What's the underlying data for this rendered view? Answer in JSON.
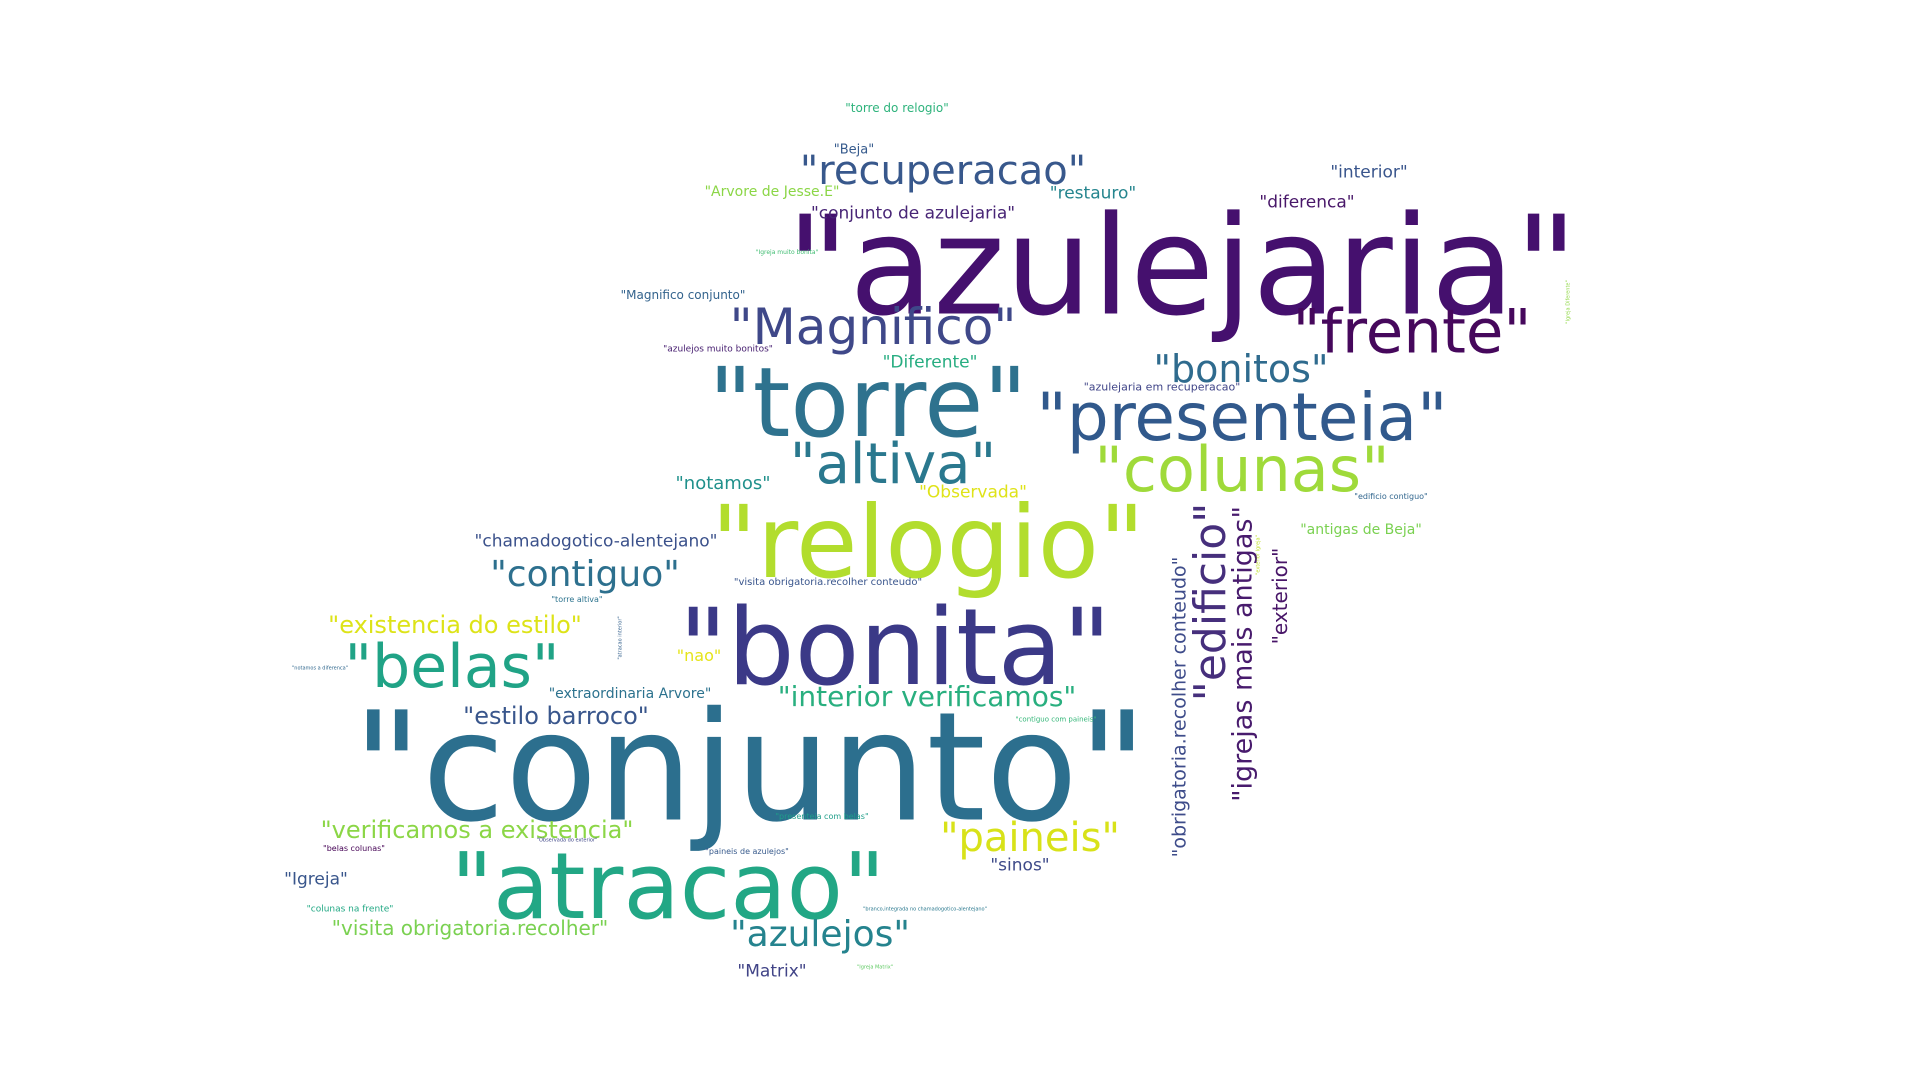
{
  "title": "word cloud",
  "words": [
    {
      "text": "\"azulejaria\"",
      "color": "#45106e"
    },
    {
      "text": "\"conjunto\"",
      "color": "#2c6f8e"
    },
    {
      "text": "\"bonita\"",
      "color": "#3b3987"
    },
    {
      "text": "\"relogio\"",
      "color": "#b2dd2d"
    },
    {
      "text": "\"torre\"",
      "color": "#2e728e"
    },
    {
      "text": "\"atracao\"",
      "color": "#22a785"
    },
    {
      "text": "\"presenteia\"",
      "color": "#31598c"
    },
    {
      "text": "\"frente\"",
      "color": "#46085c"
    },
    {
      "text": "\"colunas\"",
      "color": "#9fda3a"
    },
    {
      "text": "\"Magnifico\"",
      "color": "#3f4889"
    },
    {
      "text": "\"altiva\"",
      "color": "#2a788e"
    },
    {
      "text": "\"belas\"",
      "color": "#20a386"
    },
    {
      "text": "\"recuperacao\"",
      "color": "#38588c"
    },
    {
      "text": "\"edificio\"",
      "color": "#462f7c"
    },
    {
      "text": "\"bonitos\"",
      "color": "#2f6b8e"
    },
    {
      "text": "\"paineis\"",
      "color": "#d8e219"
    },
    {
      "text": "\"contiguo\"",
      "color": "#2d708e"
    },
    {
      "text": "\"azulejos\"",
      "color": "#25838e"
    },
    {
      "text": "\"interior verificamos\"",
      "color": "#29af7f"
    },
    {
      "text": "\"igrejas mais antigas\"",
      "color": "#481b6d"
    },
    {
      "text": "\"estilo barroco\"",
      "color": "#39568c"
    },
    {
      "text": "\"verificamos a existencia\"",
      "color": "#8bd646"
    },
    {
      "text": "\"existencia do estilo\"",
      "color": "#dde318"
    },
    {
      "text": "\"obrigatoria.recolher conteudo\"",
      "color": "#3e4c8a"
    },
    {
      "text": "\"visita obrigatoria.recolher\"",
      "color": "#7ad151"
    },
    {
      "text": "\"exterior\"",
      "color": "#481568"
    },
    {
      "text": "\"chamadogotico-alentejano\"",
      "color": "#3b518b"
    },
    {
      "text": "\"notamos\"",
      "color": "#21918c"
    },
    {
      "text": "\"Observada\"",
      "color": "#dfe318"
    },
    {
      "text": "\"Diferente\"",
      "color": "#27ad81"
    },
    {
      "text": "\"conjunto de azulejaria\"",
      "color": "#482576"
    },
    {
      "text": "\"interior\"",
      "color": "#39558c"
    },
    {
      "text": "\"diferenca\"",
      "color": "#481769"
    },
    {
      "text": "\"restauro\"",
      "color": "#25858e"
    },
    {
      "text": "\"Arvore de Jesse.E\"",
      "color": "#8bd646"
    },
    {
      "text": "\"Beja\"",
      "color": "#375b8d"
    },
    {
      "text": "\"torre do relogio\"",
      "color": "#2eb37c"
    },
    {
      "text": "\"Magnifico conjunto\"",
      "color": "#33638d"
    },
    {
      "text": "\"antigas de Beja\"",
      "color": "#7ad151"
    },
    {
      "text": "\"sinos\"",
      "color": "#3e4a89"
    },
    {
      "text": "\"Igreja\"",
      "color": "#39568c"
    },
    {
      "text": "\"Matrix\"",
      "color": "#414487"
    },
    {
      "text": "\"nao\"",
      "color": "#e5e419"
    },
    {
      "text": "\"extraordinaria Arvore\"",
      "color": "#2c728e"
    },
    {
      "text": "\"azulejaria em recuperacao\"",
      "color": "#404588"
    },
    {
      "text": "\"azulejos muito bonitos\"",
      "color": "#482071"
    },
    {
      "text": "\"visita obrigatoria.recolher conteudo\"",
      "color": "#39558c"
    },
    {
      "text": "\"edificio contiguo\"",
      "color": "#31668e"
    },
    {
      "text": "\"torre altiva\"",
      "color": "#2c738e"
    },
    {
      "text": "\"colunas na frente\"",
      "color": "#22a884"
    },
    {
      "text": "\"belas colunas\"",
      "color": "#440154"
    },
    {
      "text": "\"paineis de azulejos\"",
      "color": "#375a8c"
    },
    {
      "text": "\"presenteia com belas\"",
      "color": "#1f9e89"
    },
    {
      "text": "\"contiguo com paineis\"",
      "color": "#35b779"
    },
    {
      "text": "\"Igreja muito bonita\"",
      "color": "#40bd72"
    },
    {
      "text": "\"notamos a diferenca\"",
      "color": "#31688e"
    },
    {
      "text": "\"atracao interior\"",
      "color": "#34618d"
    },
    {
      "text": "\"Observada do exterior\"",
      "color": "#3f4788"
    },
    {
      "text": "\"branco,integrada no chamadogotico-alentejano\"",
      "color": "#2a788e"
    },
    {
      "text": "\"Igreja Matrix\"",
      "color": "#5ec962"
    },
    {
      "text": "\"exterior Igreja\"",
      "color": "#bddf26"
    },
    {
      "text": "\"Igreja Diferente\"",
      "color": "#8fd744"
    }
  ]
}
